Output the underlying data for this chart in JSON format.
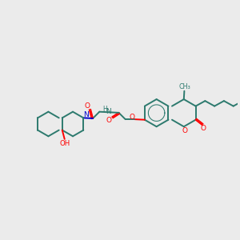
{
  "bg_color": "#ebebeb",
  "bond_color": "#2d7a6e",
  "o_color": "#ff0000",
  "n_color": "#0000cc",
  "lw": 1.4,
  "fig_w": 3.0,
  "fig_h": 3.0,
  "dpi": 100,
  "xlim": [
    0,
    10
  ],
  "ylim": [
    0,
    10
  ]
}
